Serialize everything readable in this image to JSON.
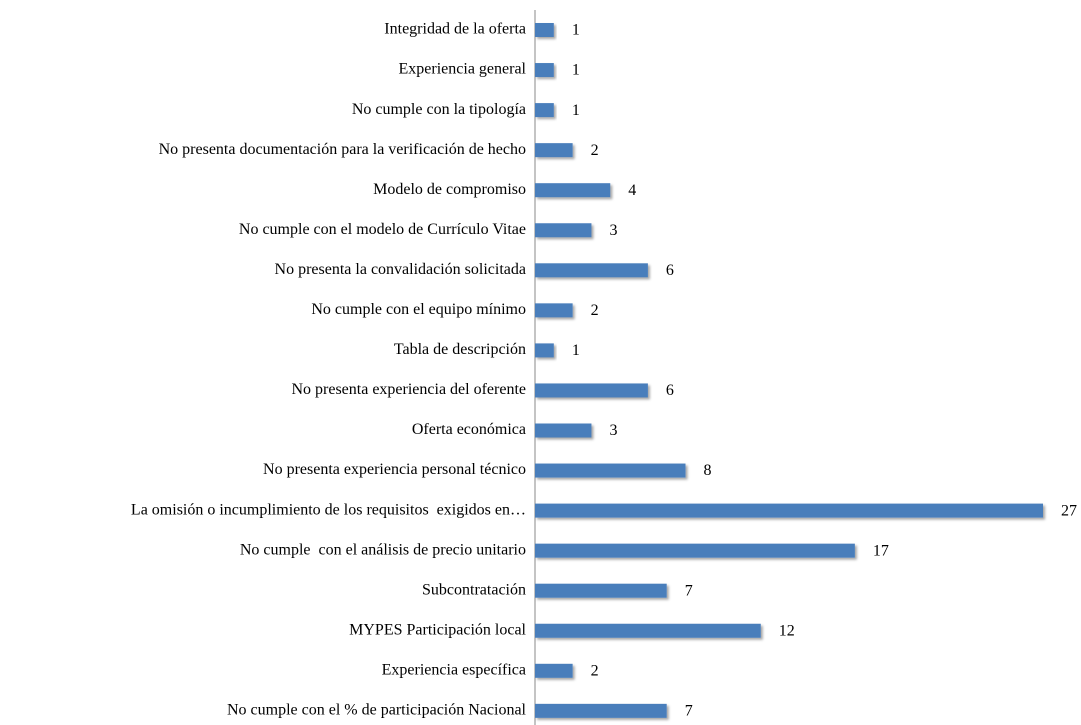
{
  "chart_data": {
    "type": "hbar",
    "color": "#4a7ebb",
    "categories": [
      "Integridad de la oferta",
      "Experiencia general",
      "No cumple con la tipología",
      "No presenta documentación para la verificación de hecho",
      "Modelo de compromiso",
      "No cumple con el modelo de Currículo Vitae",
      "No presenta la convalidación solicitada",
      "No cumple con el equipo mínimo",
      "Tabla de descripción",
      "No presenta experiencia del oferente",
      "Oferta económica",
      "No presenta experiencia personal técnico",
      "La omisión o incumplimiento de los requisitos  exigidos en…",
      "No cumple  con el análisis de precio unitario",
      "Subcontratación",
      "MYPES Participación local",
      "Experiencia específica",
      "No cumple con el % de participación Nacional"
    ],
    "values": [
      1,
      1,
      1,
      2,
      4,
      3,
      6,
      2,
      1,
      6,
      3,
      8,
      27,
      17,
      7,
      12,
      2,
      7
    ]
  }
}
